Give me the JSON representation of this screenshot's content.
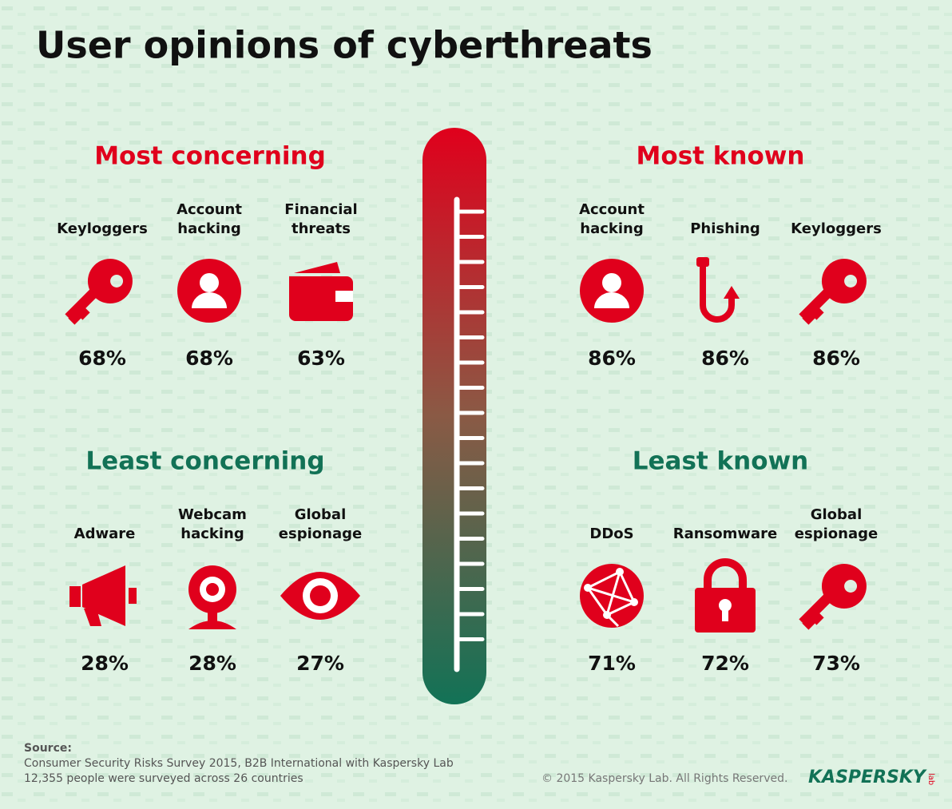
{
  "title": "User opinions of cyberthreats",
  "sections": [
    {
      "heading": "Most concerning",
      "items": [
        {
          "label": [
            "Keyloggers"
          ],
          "value": "68%"
        },
        {
          "label": [
            "Account",
            "hacking"
          ],
          "value": "68%"
        },
        {
          "label": [
            "Financial",
            "threats"
          ],
          "value": "63%"
        }
      ]
    },
    {
      "heading": "Most known",
      "items": [
        {
          "label": [
            "Account",
            "hacking"
          ],
          "value": "86%"
        },
        {
          "label": [
            "Phishing"
          ],
          "value": "86%"
        },
        {
          "label": [
            "Keyloggers"
          ],
          "value": "86%"
        }
      ]
    },
    {
      "heading": "Least concerning",
      "items": [
        {
          "label": [
            "Adware"
          ],
          "value": "28%"
        },
        {
          "label": [
            "Webcam",
            "hacking"
          ],
          "value": "28%"
        },
        {
          "label": [
            "Global",
            "espionage"
          ],
          "value": "27%"
        }
      ]
    },
    {
      "heading": "Least known",
      "items": [
        {
          "label": [
            "DDoS"
          ],
          "value": "71%"
        },
        {
          "label": [
            "Ransomware"
          ],
          "value": "72%"
        },
        {
          "label": [
            "Global",
            "espionage"
          ],
          "value": "73%"
        }
      ]
    }
  ],
  "source": {
    "heading": "Source:",
    "lines": [
      "Consumer Security Risks Survey 2015, B2B International with Kaspersky Lab",
      "12,355 people were surveyed across 26 countries"
    ]
  },
  "copyright": "© 2015 Kaspersky Lab. All Rights Reserved.",
  "logo": {
    "name": "KASPERSKY",
    "sub": "lab"
  }
}
